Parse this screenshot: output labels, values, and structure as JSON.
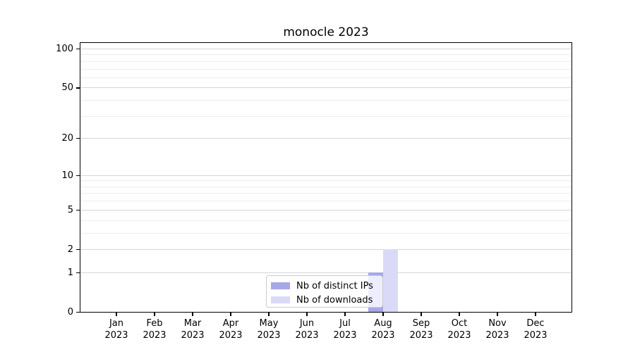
{
  "chart_data": {
    "type": "bar",
    "title": "monocle 2023",
    "categories": [
      "Jan 2023",
      "Feb 2023",
      "Mar 2023",
      "Apr 2023",
      "May 2023",
      "Jun 2023",
      "Jul 2023",
      "Aug 2023",
      "Sep 2023",
      "Oct 2023",
      "Nov 2023",
      "Dec 2023"
    ],
    "series": [
      {
        "name": "Nb of distinct IPs",
        "color": "#a7a7e9",
        "values": [
          0,
          0,
          0,
          0,
          0,
          0,
          0,
          1,
          0,
          0,
          0,
          0
        ]
      },
      {
        "name": "Nb of downloads",
        "color": "#dadaf8",
        "values": [
          0,
          0,
          0,
          0,
          0,
          0,
          0,
          2,
          0,
          0,
          0,
          0
        ]
      }
    ],
    "xlabel": "",
    "ylabel": "",
    "yscale": "log1p",
    "ylim": [
      0,
      110
    ],
    "yticks": [
      0,
      1,
      2,
      5,
      10,
      20,
      50,
      100
    ],
    "minor_grid_values": [
      3,
      4,
      6,
      7,
      8,
      9,
      30,
      40,
      60,
      70,
      80,
      90
    ],
    "grid": "horizontal",
    "legend_position": "lower center"
  },
  "colors": {
    "major_grid": "#d6d6d6",
    "minor_grid": "#ededed",
    "spine": "#000000",
    "text": "#000000",
    "legend_border": "#cccccc"
  }
}
